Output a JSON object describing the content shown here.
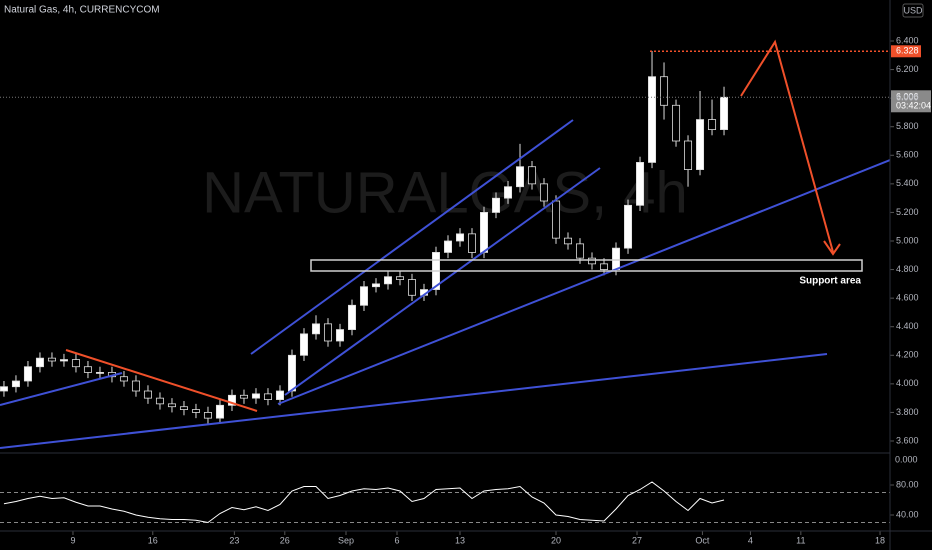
{
  "chart_data": {
    "type": "candlestick",
    "title": "Natural Gas, 4h, CURRENCYCOM",
    "watermark": "NATURALGAS, 4h",
    "currency": "USD",
    "annotation": "Support area",
    "open": [
      3.95,
      3.98,
      4.02,
      4.12,
      4.18,
      4.16,
      4.17,
      4.12,
      4.08,
      4.08,
      4.05,
      4.02,
      3.95,
      3.9,
      3.86,
      3.84,
      3.82,
      3.8,
      3.76,
      3.85,
      3.92,
      3.9,
      3.93,
      3.89,
      3.95,
      4.2,
      4.35,
      4.42,
      4.3,
      4.38,
      4.55,
      4.68,
      4.7,
      4.75,
      4.73,
      4.62,
      4.66,
      4.92,
      5.0,
      5.05,
      4.92,
      5.2,
      5.3,
      5.38,
      5.52,
      5.4,
      5.28,
      5.02,
      4.98,
      4.88,
      4.84,
      4.8,
      4.95,
      5.25,
      5.55,
      6.15,
      5.95,
      5.7,
      5.5,
      5.85,
      5.78
    ],
    "high": [
      4.02,
      4.06,
      4.16,
      4.22,
      4.22,
      4.21,
      4.21,
      4.16,
      4.12,
      4.12,
      4.09,
      4.06,
      3.99,
      3.94,
      3.9,
      3.88,
      3.86,
      3.84,
      3.89,
      3.96,
      3.96,
      3.97,
      3.97,
      3.99,
      4.24,
      4.39,
      4.48,
      4.46,
      4.42,
      4.59,
      4.72,
      4.74,
      4.79,
      4.79,
      4.77,
      4.7,
      4.96,
      5.04,
      5.09,
      5.09,
      5.24,
      5.34,
      5.42,
      5.68,
      5.56,
      5.44,
      5.32,
      5.06,
      5.02,
      4.92,
      4.88,
      4.99,
      5.29,
      5.59,
      6.33,
      6.25,
      5.99,
      5.74,
      6.05,
      5.99,
      6.08
    ],
    "low": [
      3.91,
      3.94,
      3.98,
      4.08,
      4.12,
      4.12,
      4.08,
      4.04,
      4.04,
      4.01,
      3.98,
      3.91,
      3.86,
      3.82,
      3.8,
      3.78,
      3.76,
      3.72,
      3.72,
      3.81,
      3.86,
      3.86,
      3.85,
      3.85,
      3.91,
      4.16,
      4.31,
      4.26,
      4.26,
      4.34,
      4.51,
      4.64,
      4.66,
      4.69,
      4.58,
      4.58,
      4.62,
      4.88,
      4.96,
      4.88,
      4.88,
      5.16,
      5.26,
      5.34,
      5.36,
      5.24,
      4.98,
      4.94,
      4.84,
      4.8,
      4.76,
      4.76,
      4.91,
      5.21,
      5.51,
      5.85,
      5.66,
      5.38,
      5.46,
      5.74,
      5.74
    ],
    "close": [
      3.98,
      4.02,
      4.12,
      4.18,
      4.16,
      4.17,
      4.12,
      4.08,
      4.08,
      4.05,
      4.02,
      3.95,
      3.9,
      3.86,
      3.84,
      3.82,
      3.8,
      3.76,
      3.85,
      3.92,
      3.9,
      3.93,
      3.89,
      3.95,
      4.2,
      4.35,
      4.42,
      4.3,
      4.38,
      4.55,
      4.68,
      4.7,
      4.75,
      4.73,
      4.62,
      4.66,
      4.92,
      5.0,
      5.05,
      4.92,
      5.2,
      5.3,
      5.38,
      5.52,
      5.4,
      5.28,
      5.02,
      4.98,
      4.88,
      4.84,
      4.8,
      4.95,
      5.25,
      5.55,
      6.15,
      5.95,
      5.7,
      5.5,
      5.85,
      5.78,
      6.006
    ],
    "up_color": "#ffffff",
    "down_color": "#000000",
    "ylim": [
      3.523,
      6.687
    ],
    "yticks": [
      {
        "value": 3.6,
        "label": "3.600"
      },
      {
        "value": 3.8,
        "label": "3.800"
      },
      {
        "value": 4.0,
        "label": "4.000"
      },
      {
        "value": 4.2,
        "label": "4.200"
      },
      {
        "value": 4.4,
        "label": "4.400"
      },
      {
        "value": 4.6,
        "label": "4.600"
      },
      {
        "value": 4.8,
        "label": "4.800"
      },
      {
        "value": 5.0,
        "label": "5.000"
      },
      {
        "value": 5.2,
        "label": "5.200"
      },
      {
        "value": 5.4,
        "label": "5.400"
      },
      {
        "value": 5.6,
        "label": "5.600"
      },
      {
        "value": 5.8,
        "label": "5.800"
      },
      {
        "value": 6.0,
        "label": "6.000"
      },
      {
        "value": 6.2,
        "label": "6.200"
      },
      {
        "value": 6.4,
        "label": "6.400"
      }
    ],
    "xlim": [
      -0.33,
      73.83
    ],
    "xticks": [
      {
        "value": 5.75,
        "label": "9"
      },
      {
        "value": 12.4,
        "label": "16"
      },
      {
        "value": 19.2,
        "label": "23"
      },
      {
        "value": 23.4,
        "label": "26"
      },
      {
        "value": 28.5,
        "label": "Sep"
      },
      {
        "value": 32.75,
        "label": "6"
      },
      {
        "value": 38,
        "label": "13"
      },
      {
        "value": 46,
        "label": "20"
      },
      {
        "value": 52.75,
        "label": "27"
      },
      {
        "value": 58.2,
        "label": "Oct"
      },
      {
        "value": 62.2,
        "label": "4"
      },
      {
        "value": 66.4,
        "label": "11"
      },
      {
        "value": 73,
        "label": "18"
      }
    ],
    "last_price": {
      "value": 6.006,
      "label": "6.006"
    },
    "countdown": "03:42:04",
    "high_marker": {
      "value": 6.328,
      "label": "6.328"
    },
    "lower_pane_top_label": "0.000",
    "rsi": {
      "values": [
        55,
        58,
        62,
        65,
        62,
        63,
        57,
        52,
        52,
        48,
        45,
        40,
        37,
        35,
        34,
        34,
        33,
        30,
        42,
        50,
        47,
        51,
        46,
        54,
        72,
        78,
        78,
        62,
        66,
        72,
        75,
        74,
        76,
        72,
        58,
        62,
        74,
        75,
        76,
        62,
        72,
        74,
        75,
        78,
        64,
        56,
        40,
        38,
        34,
        33,
        32,
        48,
        66,
        74,
        84,
        72,
        58,
        46,
        62,
        56,
        60
      ],
      "color": "#ffffff",
      "ylim": [
        20,
        120
      ],
      "yticks": [
        {
          "value": 80,
          "label": "80.00"
        },
        {
          "value": 40,
          "label": "40.00"
        }
      ],
      "levels": [
        70,
        30
      ]
    }
  }
}
